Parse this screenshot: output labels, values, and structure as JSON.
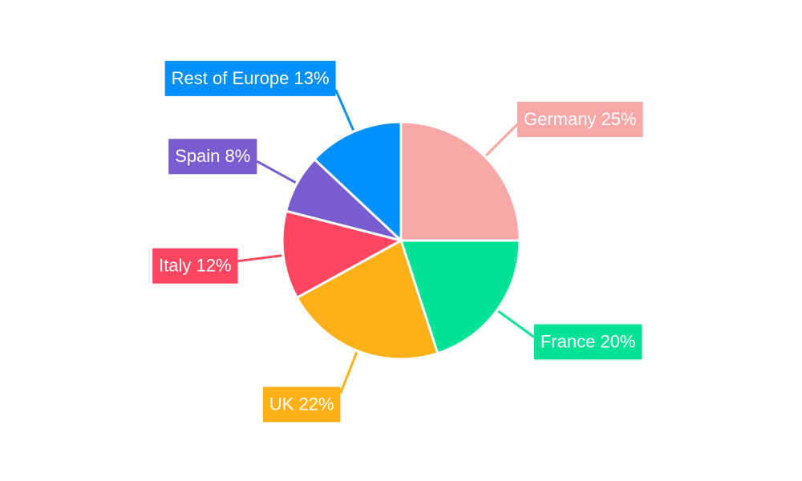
{
  "chart_data": {
    "type": "pie",
    "categories": [
      "Germany",
      "France",
      "UK",
      "Italy",
      "Spain",
      "Rest of Europe"
    ],
    "values": [
      25,
      20,
      22,
      12,
      8,
      13
    ],
    "value_labels": [
      "25%",
      "20%",
      "22%",
      "12%",
      "8%",
      "13%"
    ],
    "colors": [
      "#f9a6a6",
      "#00e396",
      "#feb019",
      "#ff4560",
      "#775dd0",
      "#008ffb"
    ]
  }
}
